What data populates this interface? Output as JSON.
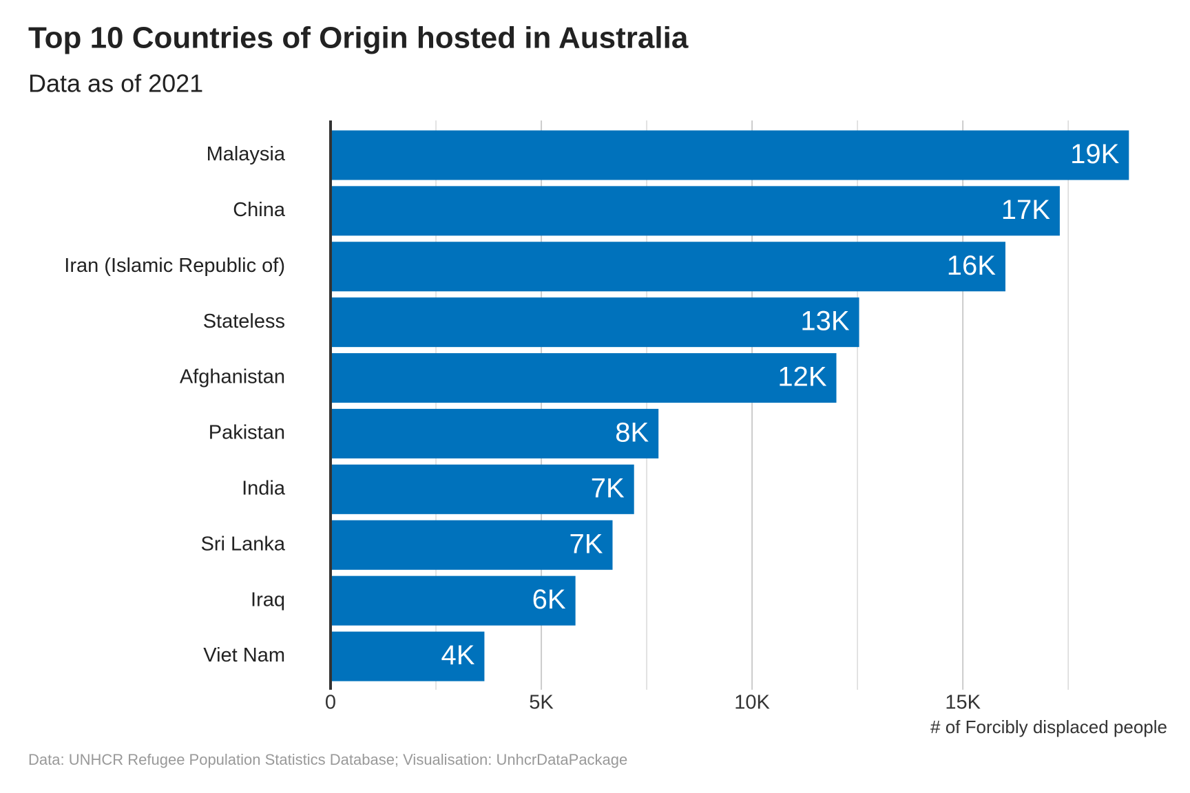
{
  "chart_data": {
    "type": "hbar",
    "title": "Top 10 Countries of Origin hosted in Australia",
    "subtitle": "Data as of 2021",
    "x_axis_label": "# of Forcibly displaced people",
    "caption": "Data: UNHCR Refugee Population Statistics Database; Visualisation: UnhcrDataPackage",
    "categories": [
      "Malaysia",
      "China",
      "Iran (Islamic Republic of)",
      "Stateless",
      "Afghanistan",
      "Pakistan",
      "India",
      "Sri Lanka",
      "Iraq",
      "Viet Nam"
    ],
    "values": [
      18940,
      17300,
      16010,
      12540,
      12000,
      7780,
      7200,
      6690,
      5810,
      3650
    ],
    "value_labels": [
      "19K",
      "17K",
      "16K",
      "13K",
      "12K",
      "8K",
      "7K",
      "7K",
      "6K",
      "4K"
    ],
    "color": "#0072bc",
    "xlim": [
      0,
      19850
    ],
    "xticks": [
      0,
      {
        "value": 5000,
        "label": "5K"
      },
      {
        "value": 10000,
        "label": "10K"
      },
      {
        "value": 15000,
        "label": "15K"
      }
    ],
    "minor_grid": [
      2500,
      7500,
      12500,
      17500
    ],
    "grid": true
  }
}
